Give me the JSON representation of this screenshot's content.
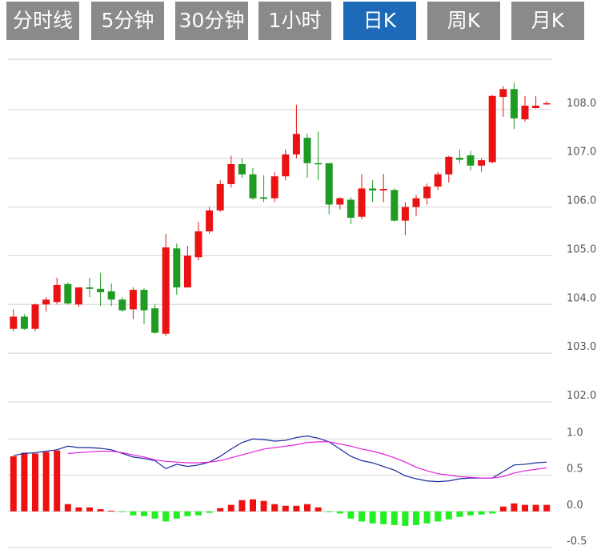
{
  "tabs": [
    "分时线",
    "5分钟",
    "30分钟",
    "1小时",
    "日K",
    "周K",
    "月K"
  ],
  "active_tab": 4,
  "chart_data": [
    {
      "type": "candlestick",
      "open": [
        103.5,
        103.75,
        103.5,
        104.0,
        104.05,
        104.42,
        104.0,
        104.35,
        104.32,
        104.27,
        104.1,
        103.9,
        104.3,
        103.92,
        103.4,
        105.15,
        104.35,
        104.97,
        105.5,
        105.93,
        106.47,
        106.88,
        106.67,
        106.2,
        106.18,
        106.63,
        107.08,
        107.42,
        106.9,
        106.9,
        106.05,
        106.15,
        105.8,
        106.38,
        106.34,
        106.35,
        105.72,
        106.0,
        106.18,
        106.42,
        106.67,
        107.01,
        107.06,
        106.85,
        106.92,
        108.26,
        108.42,
        107.8,
        108.03,
        108.12
      ],
      "high": [
        103.9,
        103.8,
        104.02,
        104.15,
        104.55,
        104.45,
        104.35,
        104.55,
        104.65,
        104.43,
        104.15,
        104.35,
        104.33,
        104.0,
        105.45,
        105.25,
        105.2,
        105.7,
        106.0,
        106.55,
        107.05,
        107.0,
        106.8,
        106.65,
        106.72,
        107.18,
        108.1,
        107.5,
        107.55,
        106.9,
        106.2,
        106.2,
        106.68,
        106.55,
        106.68,
        106.38,
        106.1,
        106.25,
        106.48,
        106.72,
        107.05,
        107.18,
        107.15,
        107.0,
        108.3,
        108.48,
        108.55,
        108.28,
        108.28,
        108.17
      ],
      "low": [
        103.45,
        103.48,
        103.45,
        103.85,
        104.0,
        104.0,
        103.95,
        104.15,
        103.97,
        103.97,
        103.85,
        103.7,
        103.6,
        103.4,
        103.35,
        104.2,
        104.35,
        104.9,
        105.45,
        105.9,
        106.4,
        106.6,
        106.15,
        106.1,
        106.1,
        106.55,
        107.0,
        106.6,
        106.55,
        105.85,
        105.95,
        105.65,
        105.75,
        106.1,
        106.1,
        105.7,
        105.42,
        105.82,
        106.05,
        106.35,
        106.5,
        106.9,
        106.75,
        106.72,
        106.9,
        107.85,
        107.6,
        107.75,
        108.02,
        108.1
      ],
      "close": [
        103.75,
        103.5,
        104.0,
        104.1,
        104.4,
        104.02,
        104.35,
        104.32,
        104.25,
        104.1,
        103.88,
        104.3,
        103.88,
        103.42,
        105.17,
        104.35,
        105.0,
        105.5,
        105.93,
        106.47,
        106.88,
        106.67,
        106.18,
        106.17,
        106.63,
        107.08,
        107.5,
        106.9,
        106.88,
        106.05,
        106.18,
        105.78,
        106.38,
        106.34,
        106.37,
        105.72,
        106.0,
        106.18,
        106.42,
        106.67,
        107.03,
        106.97,
        106.85,
        106.96,
        108.28,
        108.42,
        107.82,
        108.08,
        108.08,
        108.13
      ],
      "up_color": "#ea1212",
      "down_color": "#1f9a22",
      "ylim": [
        102,
        109
      ],
      "yticks": [
        {
          "value": 102,
          "label": "102.0"
        },
        {
          "value": 103,
          "label": "103.0"
        },
        {
          "value": 104,
          "label": "104.0"
        },
        {
          "value": 105,
          "label": "105.0"
        },
        {
          "value": 106,
          "label": "106.0"
        },
        {
          "value": 107,
          "label": "107.0"
        },
        {
          "value": 108,
          "label": "108.0"
        }
      ],
      "grid": true
    },
    {
      "type": "macd",
      "histogram": {
        "values": [
          0.76,
          0.81,
          0.8,
          0.82,
          0.84,
          0.1,
          0.055,
          0.055,
          0.03,
          0.01,
          -0.01,
          -0.055,
          -0.066,
          -0.1,
          -0.14,
          -0.1,
          -0.066,
          -0.055,
          -0.02,
          0.045,
          0.09,
          0.155,
          0.166,
          0.144,
          0.1,
          0.077,
          0.077,
          0.1,
          0.055,
          -0.01,
          -0.03,
          -0.1,
          -0.14,
          -0.166,
          -0.177,
          -0.19,
          -0.2,
          -0.19,
          -0.166,
          -0.14,
          -0.11,
          -0.077,
          -0.055,
          -0.044,
          -0.03,
          0.066,
          0.11,
          0.09,
          0.09,
          0.09
        ],
        "up_color": "#ee1111",
        "down_color": "#22f022"
      },
      "series": [
        {
          "color": "#1a2a9e",
          "values": [
            0.77,
            0.8,
            0.81,
            0.83,
            0.85,
            0.9,
            0.88,
            0.88,
            0.87,
            0.85,
            0.8,
            0.75,
            0.73,
            0.7,
            0.59,
            0.65,
            0.62,
            0.64,
            0.68,
            0.76,
            0.86,
            0.95,
            1.0,
            0.99,
            0.97,
            0.98,
            1.02,
            1.04,
            1.01,
            0.96,
            0.86,
            0.76,
            0.7,
            0.67,
            0.62,
            0.57,
            0.49,
            0.45,
            0.42,
            0.41,
            0.42,
            0.45,
            0.46,
            0.46,
            0.46,
            0.55,
            0.64,
            0.65,
            0.67,
            0.68
          ]
        },
        {
          "color": "#e020e0",
          "values": [
            null,
            null,
            null,
            null,
            null,
            0.8,
            0.81,
            0.82,
            0.83,
            0.83,
            0.81,
            0.78,
            0.75,
            0.71,
            0.69,
            0.68,
            0.67,
            0.67,
            0.68,
            0.7,
            0.74,
            0.78,
            0.82,
            0.86,
            0.88,
            0.9,
            0.92,
            0.95,
            0.96,
            0.96,
            0.93,
            0.9,
            0.86,
            0.83,
            0.79,
            0.74,
            0.68,
            0.61,
            0.56,
            0.52,
            0.5,
            0.48,
            0.47,
            0.46,
            0.46,
            0.48,
            0.53,
            0.56,
            0.58,
            0.6
          ]
        }
      ],
      "ylim": [
        -0.5,
        1.5
      ],
      "yticks": [
        -0.5,
        {
          "value": 0,
          "label": "0.0"
        },
        0.5,
        {
          "value": 1,
          "label": "1.0"
        }
      ],
      "grid": true
    }
  ]
}
